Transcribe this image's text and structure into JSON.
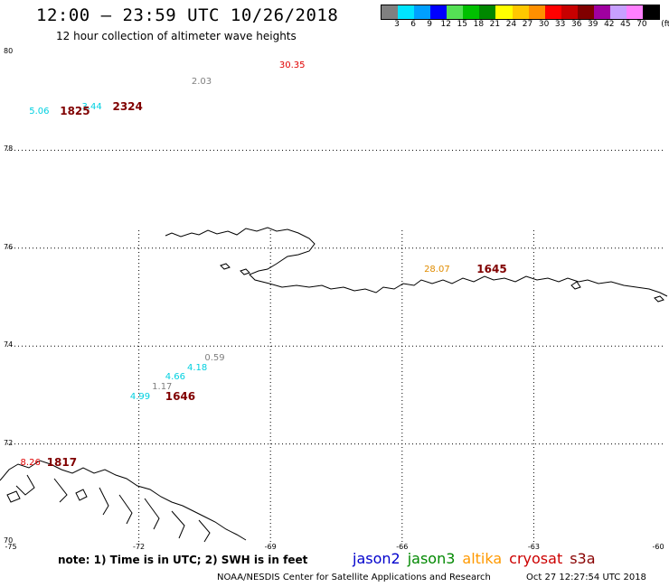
{
  "header": {
    "title": "12:00 – 23:59 UTC 10/26/2018",
    "subtitle": "12 hour collection of altimeter wave heights"
  },
  "color_scale": {
    "unit_label": "(ft)",
    "bins": [
      {
        "label": "3",
        "color": "#808080"
      },
      {
        "label": "6",
        "color": "#00e5ff"
      },
      {
        "label": "9",
        "color": "#00a0ff"
      },
      {
        "label": "12",
        "color": "#0000ff"
      },
      {
        "label": "15",
        "color": "#55e055"
      },
      {
        "label": "18",
        "color": "#00c000"
      },
      {
        "label": "21",
        "color": "#008800"
      },
      {
        "label": "24",
        "color": "#ffff00"
      },
      {
        "label": "27",
        "color": "#ffc800"
      },
      {
        "label": "30",
        "color": "#ff9000"
      },
      {
        "label": "33",
        "color": "#ff0000"
      },
      {
        "label": "36",
        "color": "#c80000"
      },
      {
        "label": "39",
        "color": "#800000"
      },
      {
        "label": "42",
        "color": "#a000a0"
      },
      {
        "label": "45",
        "color": "#c8a0ff"
      },
      {
        "label": "70",
        "color": "#ff80ff"
      },
      {
        "label": "",
        "color": "#000000"
      }
    ]
  },
  "map": {
    "lon_range": [
      -75,
      -60
    ],
    "lat_range": [
      70,
      80
    ],
    "lat_ticks": [
      "80",
      "78",
      "76",
      "74",
      "72",
      "70"
    ],
    "lon_ticks": [
      "-75",
      "-72",
      "-69",
      "-66",
      "-63",
      "-60"
    ],
    "observations": [
      {
        "text": "30.35",
        "color": "#e00000",
        "lon": -68.8,
        "lat": 79.72
      },
      {
        "text": "2.03",
        "color": "#808080",
        "lon": -70.8,
        "lat": 79.4
      },
      {
        "text": "3.44",
        "color": "#00d0e0",
        "lon": -73.3,
        "lat": 78.88
      },
      {
        "text": "5.06",
        "color": "#00d0e0",
        "lon": -74.5,
        "lat": 78.78
      },
      {
        "text": "0.59",
        "color": "#808080",
        "lon": -70.5,
        "lat": 73.75
      },
      {
        "text": "4.18",
        "color": "#00d0e0",
        "lon": -70.9,
        "lat": 73.55
      },
      {
        "text": "4.66",
        "color": "#00d0e0",
        "lon": -71.4,
        "lat": 73.35
      },
      {
        "text": "1.17",
        "color": "#808080",
        "lon": -71.7,
        "lat": 73.15
      },
      {
        "text": "4.99",
        "color": "#00d0e0",
        "lon": -72.2,
        "lat": 72.95
      },
      {
        "text": "28.07",
        "color": "#e08c00",
        "lon": -65.5,
        "lat": 75.55
      },
      {
        "text": "8.26",
        "color": "#e00000",
        "lon": -74.7,
        "lat": 71.6
      }
    ],
    "pass_labels": [
      {
        "text": "1825",
        "lon": -73.8,
        "lat": 78.78
      },
      {
        "text": "2324",
        "lon": -72.6,
        "lat": 78.88
      },
      {
        "text": "1645",
        "lon": -64.3,
        "lat": 75.55
      },
      {
        "text": "1646",
        "lon": -71.4,
        "lat": 72.95
      },
      {
        "text": "1817",
        "lon": -74.1,
        "lat": 71.6
      }
    ]
  },
  "footer": {
    "note": "note: 1) Time is in UTC; 2) SWH is in feet",
    "satellites": [
      {
        "name": "jason2",
        "color": "#0000cc"
      },
      {
        "name": "jason3",
        "color": "#008800"
      },
      {
        "name": "altika",
        "color": "#ff9900"
      },
      {
        "name": "cryosat",
        "color": "#cc0000"
      },
      {
        "name": "s3a",
        "color": "#880000"
      }
    ],
    "credit": "NOAA/NESDIS Center for Satellite Applications and Research",
    "timestamp": "Oct 27 12:27:54 UTC 2018"
  }
}
